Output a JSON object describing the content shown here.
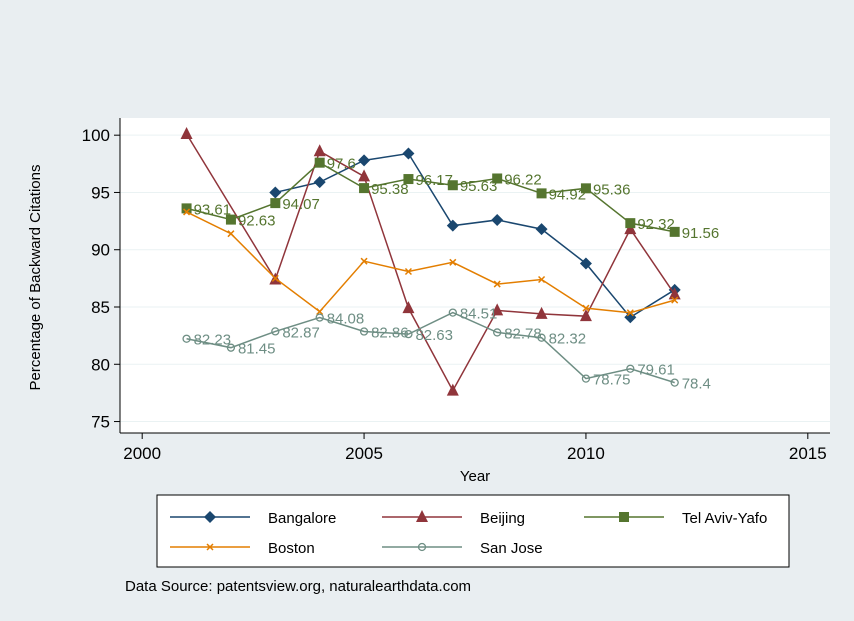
{
  "chart_data": {
    "type": "line",
    "title": "",
    "xlabel": "Year",
    "ylabel": "Percentage of Backward Citations",
    "xlim": [
      1999.5,
      2015.5
    ],
    "ylim": [
      74,
      101.5
    ],
    "x_ticks": [
      2000,
      2005,
      2010,
      2015
    ],
    "y_ticks": [
      75,
      80,
      85,
      90,
      95,
      100
    ],
    "grid": "horizontal",
    "legend_position": "bottom",
    "note": "Data Source: patentsview.org, naturalearthdata.com",
    "series": [
      {
        "name": "Bangalore",
        "color": "#1a476f",
        "marker": "diamond",
        "labels": false,
        "x": [
          2003,
          2004,
          2005,
          2006,
          2007,
          2008,
          2009,
          2010,
          2011,
          2012
        ],
        "y": [
          95.0,
          95.9,
          97.8,
          98.4,
          92.1,
          92.6,
          91.8,
          88.8,
          84.1,
          86.5
        ]
      },
      {
        "name": "Beijing",
        "color": "#90353b",
        "marker": "triangle",
        "labels": false,
        "x": [
          2001,
          2003,
          2004,
          2005,
          2006,
          2007,
          2008,
          2009,
          2010,
          2011,
          2012
        ],
        "y": [
          100.1,
          87.4,
          98.6,
          96.4,
          84.9,
          77.7,
          84.7,
          84.4,
          84.2,
          91.8,
          86.1
        ]
      },
      {
        "name": "Tel Aviv-Yafo",
        "color": "#55752f",
        "marker": "square",
        "labels": true,
        "x": [
          2001,
          2002,
          2003,
          2004,
          2005,
          2006,
          2007,
          2008,
          2009,
          2010,
          2011,
          2012
        ],
        "y": [
          93.61,
          92.63,
          94.07,
          97.6,
          95.38,
          96.17,
          95.63,
          96.22,
          94.92,
          95.36,
          92.32,
          91.56
        ],
        "y_text": [
          "93.61",
          "92.63",
          "94.07",
          "97.6",
          "95.38",
          "96.17",
          "95.63",
          "96.22",
          "94.92",
          "95.36",
          "92.32",
          "91.56"
        ]
      },
      {
        "name": "Boston",
        "color": "#e37e00",
        "marker": "x",
        "labels": false,
        "x": [
          2001,
          2002,
          2003,
          2004,
          2005,
          2006,
          2007,
          2008,
          2009,
          2010,
          2011,
          2012
        ],
        "y": [
          93.3,
          91.4,
          87.5,
          84.6,
          89.0,
          88.1,
          88.9,
          87.0,
          87.4,
          84.9,
          84.5,
          85.6
        ]
      },
      {
        "name": "San Jose",
        "color": "#6e8e84",
        "marker": "hollow-circle",
        "labels": true,
        "x": [
          2001,
          2002,
          2003,
          2004,
          2005,
          2006,
          2007,
          2008,
          2009,
          2010,
          2011,
          2012
        ],
        "y": [
          82.23,
          81.45,
          82.87,
          84.08,
          82.86,
          82.63,
          84.51,
          82.78,
          82.32,
          78.75,
          79.61,
          78.4
        ],
        "y_text": [
          "82.23",
          "81.45",
          "82.87",
          "84.08",
          "82.86",
          "82.63",
          "84.51",
          "82.78",
          "82.32",
          "78.75",
          "79.61",
          "78.4"
        ]
      }
    ]
  }
}
